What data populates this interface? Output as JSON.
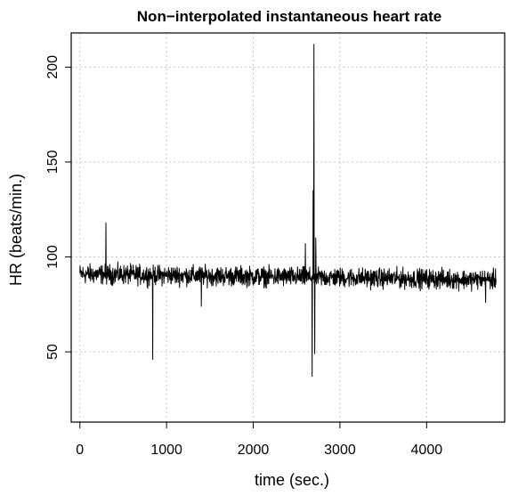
{
  "chart_data": {
    "type": "line",
    "title": "Non−interpolated instantaneous heart rate",
    "xlabel": "time (sec.)",
    "ylabel": "HR (beats/min.)",
    "xlim": [
      -100,
      4900
    ],
    "ylim": [
      13,
      218
    ],
    "xticks": [
      0,
      1000,
      2000,
      3000,
      4000
    ],
    "xtick_labels": [
      "0",
      "1000",
      "2000",
      "3000",
      "4000"
    ],
    "yticks": [
      50,
      100,
      150,
      200
    ],
    "ytick_labels": [
      "50",
      "100",
      "150",
      "200"
    ],
    "grid": true,
    "grid_style": "dotted",
    "line_color": "#000000",
    "baseline": {
      "x_range": [
        0,
        4800
      ],
      "mean_start": 91,
      "mean_end": 88,
      "noise_amplitude": 5
    },
    "spikes": [
      {
        "x": 300,
        "y": 118
      },
      {
        "x": 840,
        "y": 46
      },
      {
        "x": 1400,
        "y": 74
      },
      {
        "x": 2600,
        "y": 107
      },
      {
        "x": 2680,
        "y": 37
      },
      {
        "x": 2690,
        "y": 135
      },
      {
        "x": 2700,
        "y": 212
      },
      {
        "x": 2710,
        "y": 49
      },
      {
        "x": 2720,
        "y": 110
      },
      {
        "x": 4680,
        "y": 76
      }
    ]
  }
}
